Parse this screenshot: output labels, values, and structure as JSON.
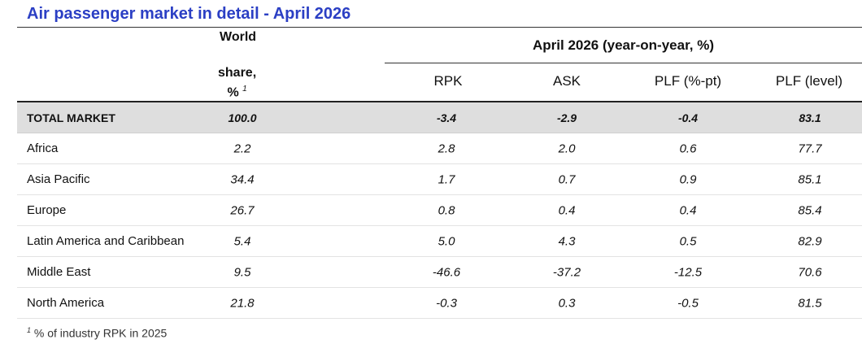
{
  "title": "Air passenger market in detail - April 2026",
  "header": {
    "world_line1": "World",
    "world_line2": "share,",
    "world_line3": "%",
    "world_note_mark": "1",
    "group": "April 2026 (year-on-year, %)",
    "columns": [
      "RPK",
      "ASK",
      "PLF (%-pt)",
      "PLF (level)"
    ]
  },
  "footnote": {
    "mark": "1",
    "text": " % of industry RPK in 2025"
  },
  "chart_data": {
    "type": "table",
    "title": "Air passenger market in detail - April 2026",
    "columns": [
      "World share, %",
      "RPK",
      "ASK",
      "PLF (%-pt)",
      "PLF (level)"
    ],
    "rows": [
      {
        "name": "TOTAL MARKET",
        "values": [
          "100.0",
          "-3.4",
          "-2.9",
          "-0.4",
          "83.1"
        ]
      },
      {
        "name": "Africa",
        "values": [
          "2.2",
          "2.8",
          "2.0",
          "0.6",
          "77.7"
        ]
      },
      {
        "name": "Asia Pacific",
        "values": [
          "34.4",
          "1.7",
          "0.7",
          "0.9",
          "85.1"
        ]
      },
      {
        "name": "Europe",
        "values": [
          "26.7",
          "0.8",
          "0.4",
          "0.4",
          "85.4"
        ]
      },
      {
        "name": "Latin America and Caribbean",
        "values": [
          "5.4",
          "5.0",
          "4.3",
          "0.5",
          "82.9"
        ]
      },
      {
        "name": "Middle East",
        "values": [
          "9.5",
          "-46.6",
          "-37.2",
          "-12.5",
          "70.6"
        ]
      },
      {
        "name": "North America",
        "values": [
          "21.8",
          "-0.3",
          "0.3",
          "-0.5",
          "81.5"
        ]
      }
    ]
  }
}
